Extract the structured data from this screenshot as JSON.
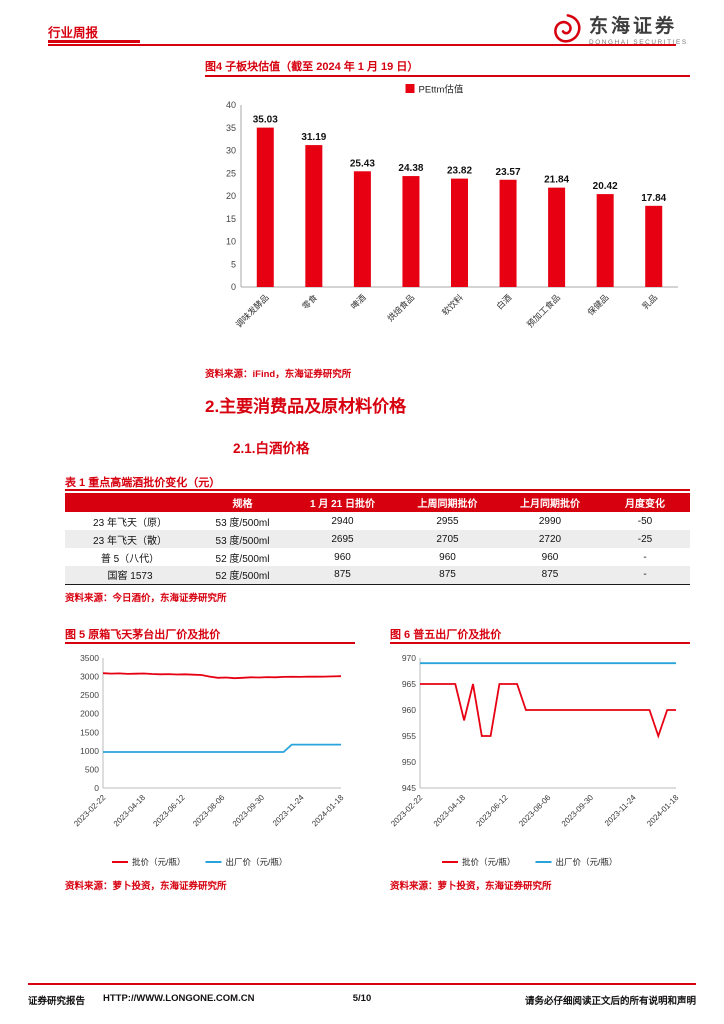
{
  "colors": {
    "accent": "#d7000f",
    "bar_red": "#e60012",
    "line_red": "#e60012",
    "line_blue": "#29a3dc"
  },
  "header": {
    "report_type": "行业周报",
    "logo": {
      "cn": "东海证券",
      "en": "DONGHAI SECURITIES"
    }
  },
  "figure4": {
    "title": "图4  子板块估值（截至 2024 年 1 月 19 日）",
    "source": "资料来源：iFind，东海证券研究所"
  },
  "section": {
    "h2": "2.主要消费品及原材料价格",
    "h3": "2.1.白酒价格"
  },
  "table1": {
    "title": "表 1   重点高端酒批价变化（元）",
    "headers": [
      "",
      "规格",
      "1 月 21 日批价",
      "上周同期批价",
      "上月同期批价",
      "月度变化"
    ],
    "rows": [
      [
        "23 年飞天（原）",
        "53 度/500ml",
        "2940",
        "2955",
        "2990",
        "-50"
      ],
      [
        "23 年飞天（散）",
        "53 度/500ml",
        "2695",
        "2705",
        "2720",
        "-25"
      ],
      [
        "普 5（八代）",
        "52 度/500ml",
        "960",
        "960",
        "960",
        "-"
      ],
      [
        "国窖 1573",
        "52 度/500ml",
        "875",
        "875",
        "875",
        "-"
      ]
    ],
    "source": "资料来源：今日酒价，东海证券研究所"
  },
  "figure5": {
    "title": "图 5   原箱飞天茅台出厂价及批价",
    "source": "资料来源：萝卜投资，东海证券研究所"
  },
  "figure6": {
    "title": "图 6   普五出厂价及批价",
    "source": "资料来源：萝卜投资，东海证券研究所"
  },
  "footer": {
    "left1": "证券研究报告",
    "left2": "HTTP://WWW.LONGONE.COM.CN",
    "page": "5/10",
    "right": "请务必仔细阅读正文后的所有说明和声明"
  },
  "chart_data": [
    {
      "id": "fig4",
      "type": "bar",
      "title": "子板块估值（截至 2024 年 1 月 19 日）",
      "legend": [
        "PEttm估值"
      ],
      "categories": [
        "调味发酵品",
        "零食",
        "啤酒",
        "烘焙食品",
        "软饮料",
        "白酒",
        "预加工食品",
        "保健品",
        "乳品"
      ],
      "values": [
        35.03,
        31.19,
        25.43,
        24.38,
        23.82,
        23.57,
        21.84,
        20.42,
        17.84
      ],
      "ylim": [
        0,
        40
      ],
      "ytick_step": 5,
      "color": "#e60012",
      "grid": false,
      "legend_position": "top-center"
    },
    {
      "id": "fig5",
      "type": "line",
      "title": "原箱飞天茅台出厂价及批价",
      "x_labels": [
        "2023-02-22",
        "2023-04-18",
        "2023-06-12",
        "2023-08-06",
        "2023-09-30",
        "2023-11-24",
        "2024-01-18"
      ],
      "ylim": [
        0,
        3500
      ],
      "yticks": [
        0,
        500,
        1000,
        1500,
        2000,
        2500,
        3000,
        3500
      ],
      "grid": false,
      "legend_position": "bottom",
      "series": [
        {
          "name": "批价（元/瓶）",
          "color": "#e60012",
          "values": [
            3090,
            3080,
            3085,
            3072,
            3078,
            3082,
            3070,
            3062,
            3066,
            3055,
            3060,
            3050,
            3042,
            3000,
            2966,
            2976,
            2956,
            2966,
            2980,
            2976,
            2986,
            2980,
            2990,
            2994,
            2990,
            3000,
            2996,
            3000,
            3004,
            3010
          ]
        },
        {
          "name": "出厂价（元/瓶）",
          "color": "#29a3dc",
          "values": [
            969,
            969,
            969,
            969,
            969,
            969,
            969,
            969,
            969,
            969,
            969,
            969,
            969,
            969,
            969,
            969,
            969,
            969,
            969,
            969,
            969,
            969,
            969,
            1169,
            1169,
            1169,
            1169,
            1169,
            1169,
            1169
          ]
        }
      ]
    },
    {
      "id": "fig6",
      "type": "line",
      "title": "普五出厂价及批价",
      "x_labels": [
        "2023-02-22",
        "2023-04-18",
        "2023-06-12",
        "2023-08-06",
        "2023-09-30",
        "2023-11-24",
        "2024-01-18"
      ],
      "ylim": [
        945,
        970
      ],
      "yticks": [
        945,
        950,
        955,
        960,
        965,
        970
      ],
      "grid": false,
      "legend_position": "bottom",
      "series": [
        {
          "name": "批价（元/瓶）",
          "color": "#e60012",
          "values": [
            965,
            965,
            965,
            965,
            965,
            958,
            965,
            955,
            955,
            965,
            965,
            965,
            960,
            960,
            960,
            960,
            960,
            960,
            960,
            960,
            960,
            960,
            960,
            960,
            960,
            960,
            960,
            955,
            960,
            960
          ]
        },
        {
          "name": "出厂价（元/瓶）",
          "color": "#29a3dc",
          "values": [
            969,
            969,
            969,
            969,
            969,
            969,
            969,
            969,
            969,
            969,
            969,
            969,
            969,
            969,
            969,
            969,
            969,
            969,
            969,
            969,
            969,
            969,
            969,
            969,
            969,
            969,
            969,
            969,
            969,
            969
          ]
        }
      ]
    }
  ]
}
